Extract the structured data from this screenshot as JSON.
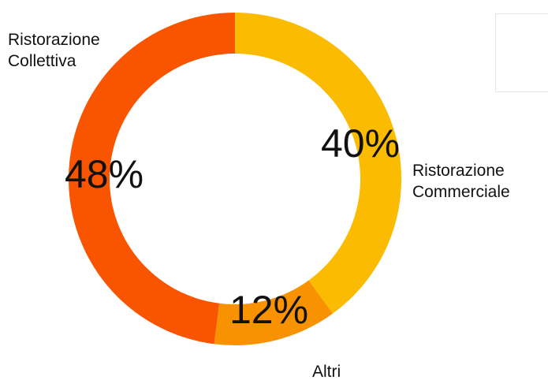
{
  "chart_data": {
    "type": "pie",
    "variant": "donut",
    "title": "",
    "slices": [
      {
        "value": 40,
        "percent_label": "40%",
        "category_lines": [
          "Ristorazione",
          "Commerciale"
        ],
        "color": "#FABB00"
      },
      {
        "value": 12,
        "percent_label": "12%",
        "category_lines": [
          "Altri"
        ],
        "color": "#F99200"
      },
      {
        "value": 48,
        "percent_label": "48%",
        "category_lines": [
          "Ristorazione",
          "Collettiva"
        ],
        "color": "#F95500"
      }
    ],
    "start": "12 o'clock",
    "direction": "clockwise",
    "legend": "top-right (empty box)"
  }
}
